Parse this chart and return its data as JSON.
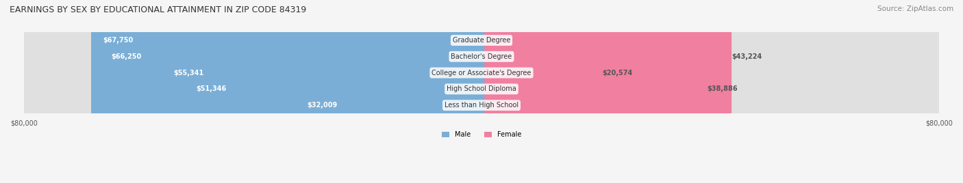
{
  "title": "EARNINGS BY SEX BY EDUCATIONAL ATTAINMENT IN ZIP CODE 84319",
  "source": "Source: ZipAtlas.com",
  "categories": [
    "Less than High School",
    "High School Diploma",
    "College or Associate's Degree",
    "Bachelor's Degree",
    "Graduate Degree"
  ],
  "male_values": [
    32009,
    51346,
    55341,
    66250,
    67750
  ],
  "female_values": [
    0,
    38886,
    20574,
    43224,
    0
  ],
  "male_color": "#7aaed6",
  "female_color": "#f07fa0",
  "male_label": "Male",
  "female_label": "Female",
  "max_val": 80000,
  "bg_color": "#f0f0f0",
  "row_bg": "#e8e8e8",
  "title_fontsize": 9,
  "source_fontsize": 7.5,
  "bar_label_fontsize": 7,
  "axis_label": "$80,000",
  "figsize": [
    14.06,
    2.68
  ],
  "dpi": 100
}
